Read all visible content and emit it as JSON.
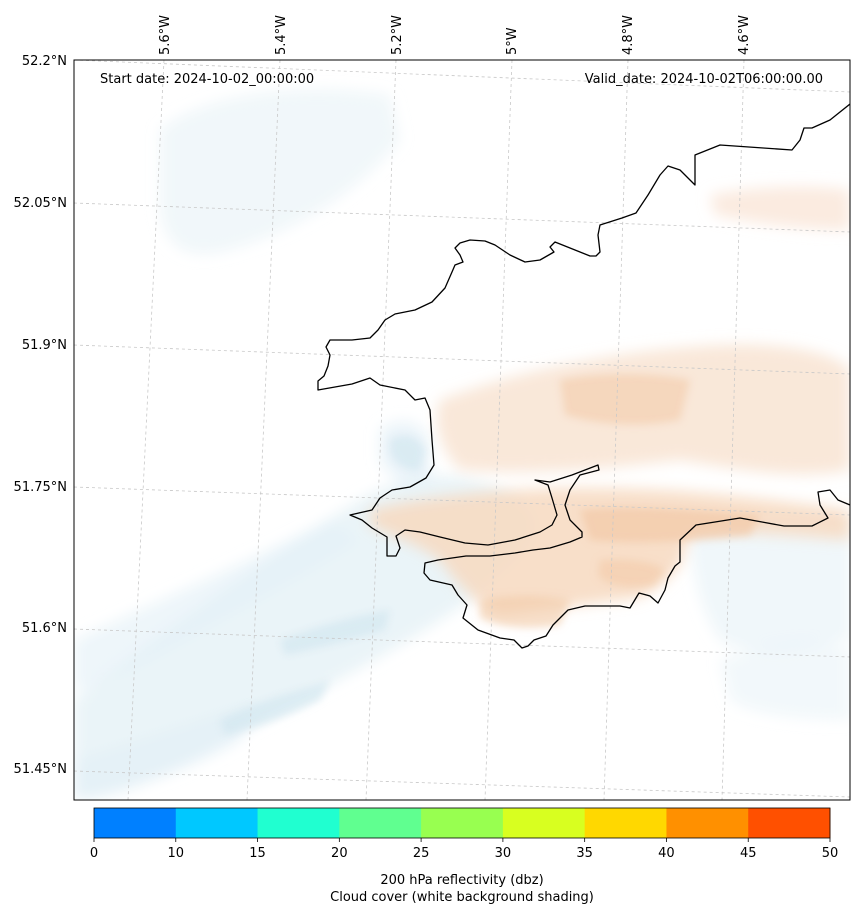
{
  "map": {
    "start_date": "Start date: 2024-10-02_00:00:00",
    "valid_date": "Valid_date: 2024-10-02T06:00:00.00",
    "longitude_labels": [
      "5.6°W",
      "5.4°W",
      "5.2°W",
      "5°W",
      "4.8°W",
      "4.6°W"
    ],
    "latitude_labels": [
      "52.2°N",
      "52.05°N",
      "51.9°N",
      "51.75°N",
      "51.6°N",
      "51.45°N"
    ]
  },
  "colorbar": {
    "ticks": [
      "0",
      "10",
      "15",
      "20",
      "25",
      "30",
      "35",
      "40",
      "45",
      "50"
    ],
    "colors": [
      "#0080ff",
      "#00c8ff",
      "#20ffd0",
      "#60ff90",
      "#98ff50",
      "#d8ff20",
      "#ffd800",
      "#ff9000",
      "#ff5000"
    ],
    "label_line1": "200 hPa reflectivity (dbz)",
    "label_line2": "Cloud cover (white background shading)"
  },
  "colors": {
    "cloud_blue": "#e2f0f6",
    "cloud_orange": "#f6d8bf",
    "coastline": "#000000",
    "gridline": "#c8c8c8"
  }
}
